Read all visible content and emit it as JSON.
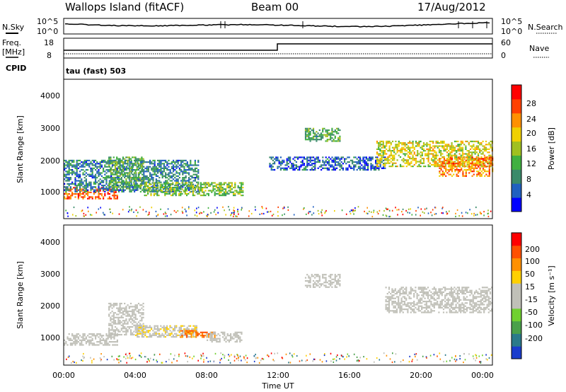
{
  "header": {
    "station": "Wallops Island (fitACF)",
    "beam": "Beam 00",
    "date": "17/Aug/2012"
  },
  "noise_panel": {
    "left_label": "N.Sky",
    "right_label": "N.Search",
    "left_ticks": [
      "10^5",
      "10^0"
    ],
    "right_ticks": [
      "10^5",
      "10^0"
    ]
  },
  "freq_panel": {
    "left_label_1": "Freq.",
    "left_label_2": "[MHz]",
    "right_label": "Nave",
    "left_ticks": [
      "18",
      "8"
    ],
    "right_ticks": [
      "60",
      "0"
    ],
    "cpid_label": "CPID",
    "cpid_text": "tau (fast) 503"
  },
  "colorbars": {
    "power": {
      "label": "Power [dB]",
      "ticks": [
        "28",
        "24",
        "20",
        "16",
        "12",
        "8",
        "4"
      ],
      "colors": [
        "#0000ff",
        "#2060c0",
        "#3a8a6a",
        "#40b040",
        "#a0c020",
        "#f0d000",
        "#ff9000",
        "#ff4000",
        "#ff0000"
      ]
    },
    "velocity": {
      "label": "Velocity [m s⁻¹]",
      "ticks": [
        "200",
        "100",
        "50",
        "15",
        "-15",
        "-50",
        "-100",
        "-200"
      ],
      "colors": [
        "#1a3ccc",
        "#2a7a8a",
        "#4aa04a",
        "#70d030",
        "#c0c0b8",
        "#c0c0b8",
        "#ffd000",
        "#ff9000",
        "#ff5000",
        "#ff0000"
      ]
    }
  },
  "axes": {
    "y_title": "Slant Range [km]",
    "y_ticks": [
      "4000",
      "3000",
      "2000",
      "1000"
    ],
    "x_title": "Time UT",
    "x_ticks": [
      "00:00",
      "04:00",
      "08:00",
      "12:00",
      "16:00",
      "20:00",
      "00:00"
    ]
  },
  "chart_data": [
    {
      "type": "heatmap",
      "name": "power",
      "x_range_hours": [
        0,
        24
      ],
      "y_range_km": [
        180,
        4500
      ],
      "value_range_db": [
        0,
        32
      ],
      "regions": [
        {
          "t0": 0.0,
          "t1": 3.0,
          "r0": 800,
          "r1": 1150,
          "level": 26
        },
        {
          "t0": 0.0,
          "t1": 7.5,
          "r0": 1000,
          "r1": 2000,
          "level": 8
        },
        {
          "t0": 2.5,
          "t1": 4.5,
          "r0": 1100,
          "r1": 2100,
          "level": 12
        },
        {
          "t0": 4.5,
          "t1": 10.0,
          "r0": 900,
          "r1": 1300,
          "level": 14
        },
        {
          "t0": 11.5,
          "t1": 18.0,
          "r0": 1700,
          "r1": 2100,
          "level": 6
        },
        {
          "t0": 13.5,
          "t1": 15.5,
          "r0": 2600,
          "r1": 3000,
          "level": 12
        },
        {
          "t0": 17.5,
          "t1": 24.0,
          "r0": 1800,
          "r1": 2600,
          "level": 18
        },
        {
          "t0": 21.0,
          "t1": 24.0,
          "r0": 1500,
          "r1": 2100,
          "level": 24
        }
      ]
    },
    {
      "type": "heatmap",
      "name": "velocity",
      "x_range_hours": [
        0,
        24
      ],
      "y_range_km": [
        180,
        4500
      ],
      "value_range_ms": [
        -250,
        250
      ],
      "regions": [
        {
          "t0": 0.0,
          "t1": 3.0,
          "r0": 800,
          "r1": 1150,
          "level": 0
        },
        {
          "t0": 2.5,
          "t1": 4.5,
          "r0": 1100,
          "r1": 2100,
          "level": 0
        },
        {
          "t0": 4.0,
          "t1": 7.5,
          "r0": 1050,
          "r1": 1400,
          "level": 40
        },
        {
          "t0": 6.5,
          "t1": 8.5,
          "r0": 1050,
          "r1": 1250,
          "level": 150
        },
        {
          "t0": 8.0,
          "t1": 10.0,
          "r0": 900,
          "r1": 1200,
          "level": 0
        },
        {
          "t0": 13.5,
          "t1": 15.5,
          "r0": 2600,
          "r1": 3000,
          "level": 0
        },
        {
          "t0": 18.0,
          "t1": 24.0,
          "r0": 1800,
          "r1": 2600,
          "level": 0
        }
      ]
    }
  ]
}
